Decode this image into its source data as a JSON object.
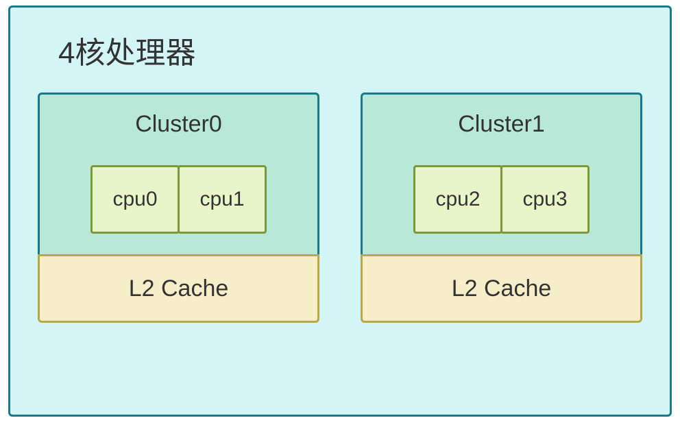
{
  "diagram": {
    "type": "block-diagram",
    "title": "4核处理器",
    "title_fontsize": 44,
    "title_color": "#333333",
    "container": {
      "border_color": "#1a7a8c",
      "background_color": "#d4f5f5",
      "border_width": 3,
      "border_radius": 6
    },
    "clusters": [
      {
        "label": "Cluster0",
        "top_bg_color": "#b8e8d8",
        "border_color": "#1a7a8c",
        "cpus": [
          {
            "label": "cpu0",
            "bg_color": "#e8f5c8",
            "border_color": "#7a9a3a"
          },
          {
            "label": "cpu1",
            "bg_color": "#e8f5c8",
            "border_color": "#7a9a3a"
          }
        ],
        "cache": {
          "label": "L2 Cache",
          "bg_color": "#f5eec8",
          "border_color": "#b8a848"
        }
      },
      {
        "label": "Cluster1",
        "top_bg_color": "#b8e8d8",
        "border_color": "#1a7a8c",
        "cpus": [
          {
            "label": "cpu2",
            "bg_color": "#e8f5c8",
            "border_color": "#7a9a3a"
          },
          {
            "label": "cpu3",
            "bg_color": "#e8f5c8",
            "border_color": "#7a9a3a"
          }
        ],
        "cache": {
          "label": "L2 Cache",
          "bg_color": "#f5eec8",
          "border_color": "#b8a848"
        }
      }
    ],
    "label_fontsize": 34,
    "cpu_fontsize": 30,
    "text_color": "#333333"
  }
}
